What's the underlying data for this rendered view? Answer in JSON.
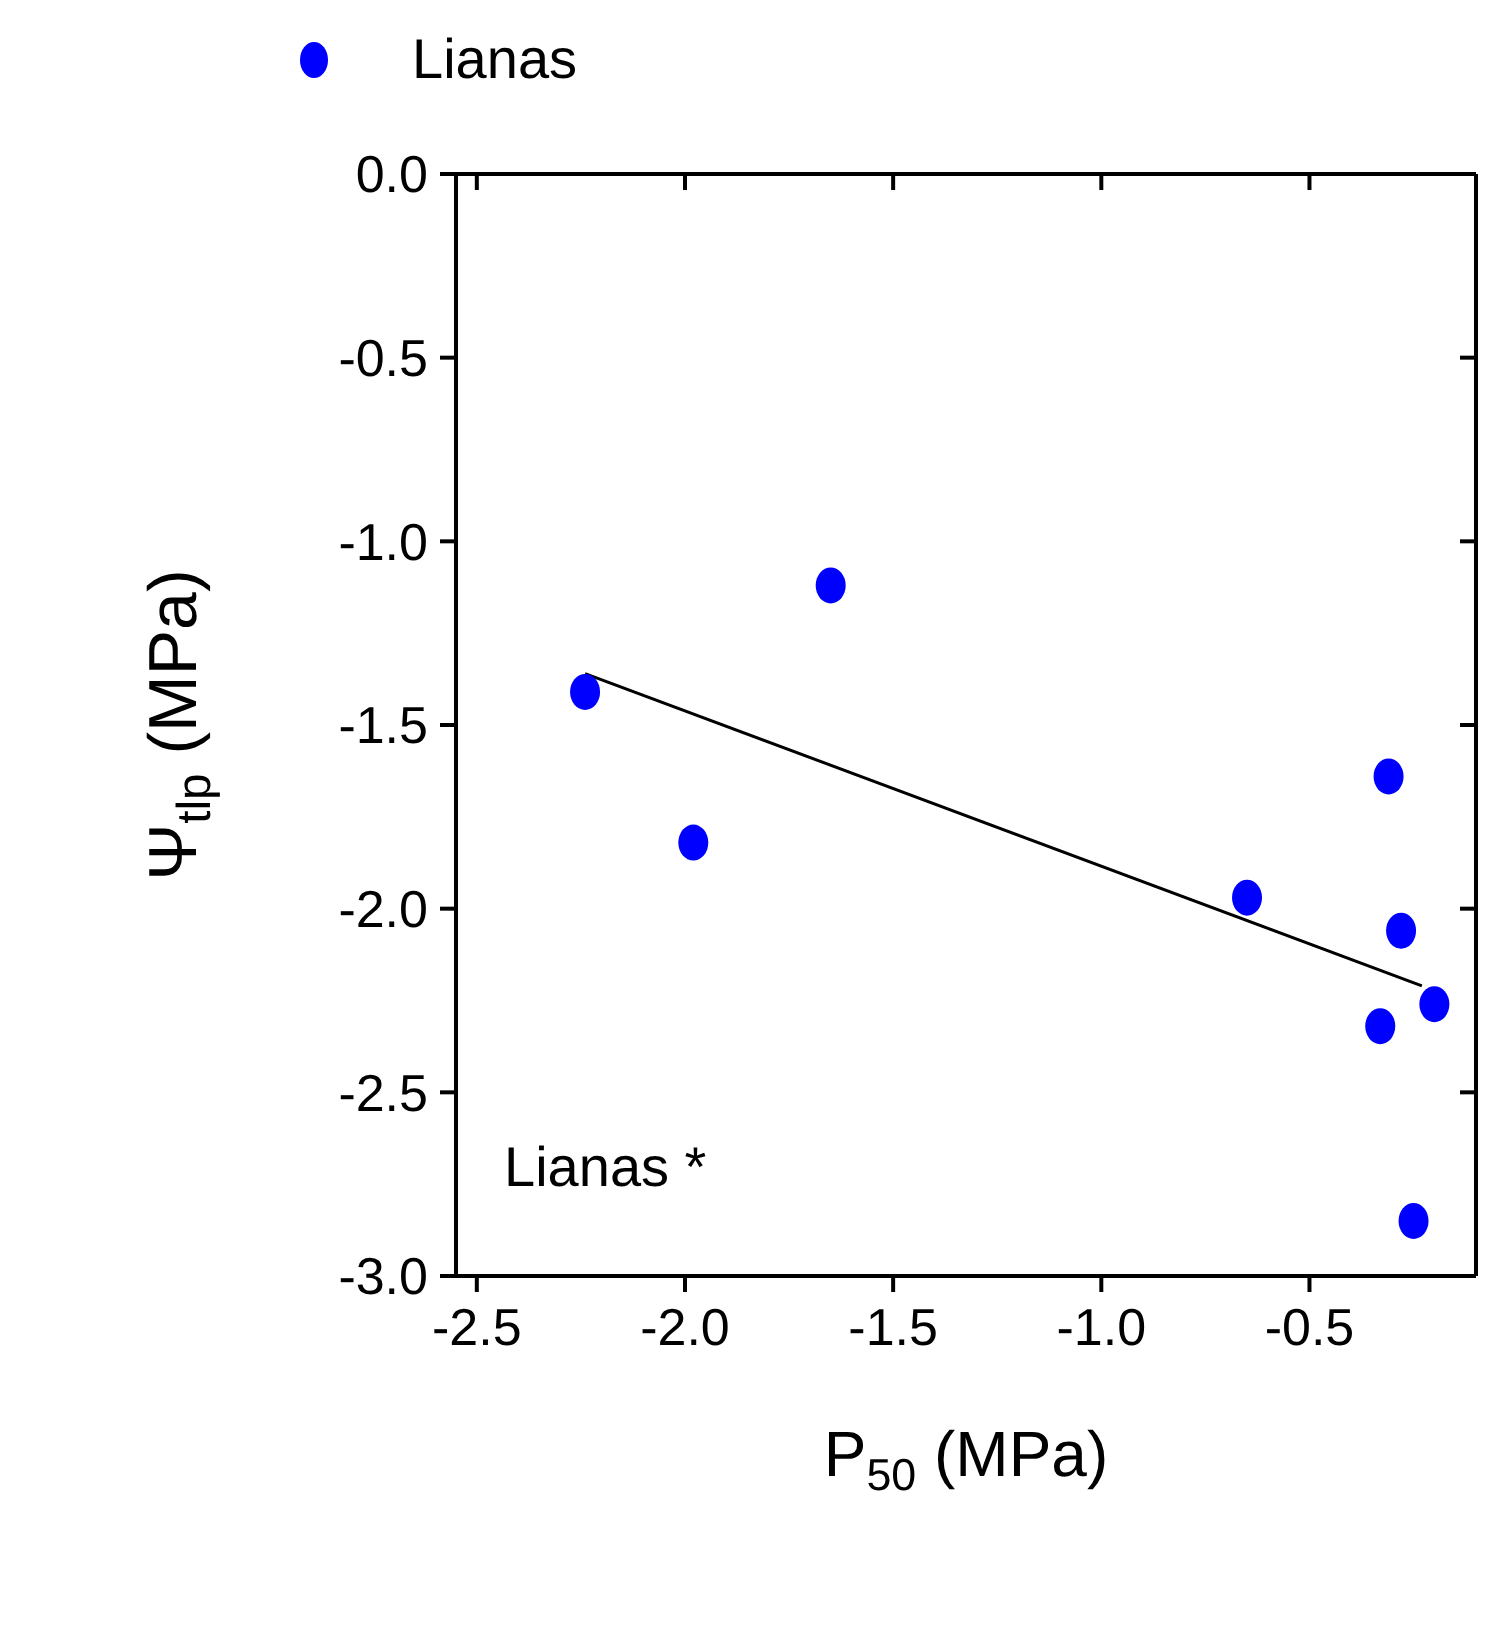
{
  "chart_data": {
    "type": "scatter",
    "xlabel": "P$_{50}$ (MPa)",
    "ylabel": "Ψ$_{tlp}$ (MPa)",
    "series": [
      {
        "name": "Lianas",
        "color": "#0000ff",
        "marker": "circle",
        "x": [
          -2.24,
          -1.98,
          -1.65,
          -0.65,
          -0.31,
          -0.28,
          -0.2,
          -0.33,
          -0.25
        ],
        "values": [
          -1.41,
          -1.82,
          -1.12,
          -1.97,
          -1.64,
          -2.06,
          -2.26,
          -2.32,
          -2.85
        ]
      },
      {
        "type": "line",
        "color": "#000000",
        "marker": "none",
        "x": [
          -2.24,
          -0.23
        ],
        "values": [
          -1.36,
          -2.21
        ]
      }
    ],
    "xlim": [
      -2.55,
      -0.1
    ],
    "xticks": [
      -2.5,
      {
        "value": -2.0,
        "label": "-2.0"
      },
      -1.5,
      {
        "value": -1.0,
        "label": "-1.0"
      },
      -0.5
    ],
    "ylim": [
      -3.0,
      0.0
    ],
    "yticks": [
      {
        "value": -3.0,
        "label": "-3.0"
      },
      -2.5,
      {
        "value": -2.0,
        "label": "-2.0"
      },
      -1.5,
      {
        "value": -1.0,
        "label": "-1.0"
      },
      -0.5,
      {
        "value": 0.0,
        "label": "0.0"
      }
    ],
    "annotations": [
      "Lianas *"
    ],
    "legend": "top left"
  }
}
